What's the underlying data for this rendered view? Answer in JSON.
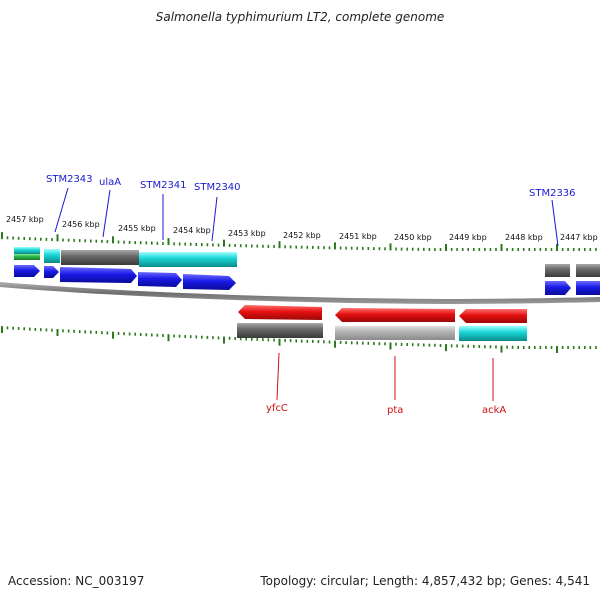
{
  "title": "Salmonella typhimurium LT2, complete genome",
  "footer": {
    "accession": "Accession: NC_003197",
    "summary": "Topology: circular; Length: 4,857,432 bp; Genes: 4,541"
  },
  "scale_labels": [
    "2457 kbp",
    "2456 kbp",
    "2455 kbp",
    "2454 kbp",
    "2453 kbp",
    "2452 kbp",
    "2451 kbp",
    "2450 kbp",
    "2449 kbp",
    "2448 kbp",
    "2447 kbp"
  ],
  "top_gene_labels": [
    "STM2343",
    "ulaA",
    "STM2341",
    "STM2340",
    "STM2336"
  ],
  "bottom_gene_labels": [
    "yfcC",
    "pta",
    "ackA"
  ],
  "colors": {
    "cds_forward": "#1a1ae6",
    "cds_reverse": "#e61010",
    "feature_gray": "#6a6a6a",
    "feature_light_gray": "#b4b4b4",
    "feature_cyan": "#1cc8c8",
    "feature_green": "#2db84a",
    "tick": "#2a7a1a",
    "backbone": "#808080"
  }
}
